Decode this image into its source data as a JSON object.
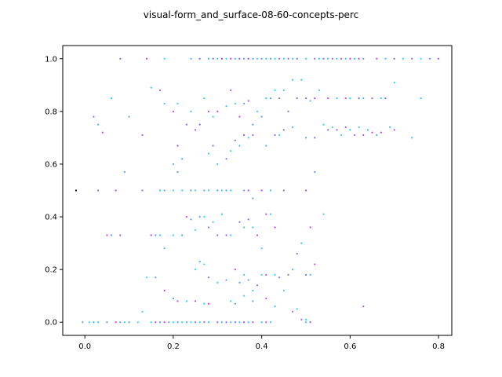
{
  "chart_data": {
    "type": "scatter",
    "title": "visual-form_and_surface-08-60-concepts-perc",
    "xlabel": "",
    "ylabel": "",
    "xlim": [
      -0.05,
      0.83
    ],
    "ylim": [
      -0.05,
      1.05
    ],
    "xticks": [
      "0.0",
      "0.2",
      "0.4",
      "0.6",
      "0.8"
    ],
    "xtick_values": [
      0.0,
      0.2,
      0.4,
      0.6,
      0.8
    ],
    "yticks": [
      "0.0",
      "0.2",
      "0.4",
      "0.6",
      "0.8",
      "1.0"
    ],
    "ytick_values": [
      0.0,
      0.2,
      0.4,
      0.6,
      0.8,
      1.0
    ],
    "grid": false,
    "colors": [
      "#b44cf0",
      "#8a6cf8",
      "#5a9cf8",
      "#38c6f4",
      "#2fd4ee"
    ],
    "series": [
      {
        "points": [
          [
            -0.02,
            0.5
          ],
          [
            -0.005,
            0.0
          ],
          [
            0.01,
            0.0
          ],
          [
            0.02,
            0.0
          ],
          [
            0.03,
            0.0
          ],
          [
            0.05,
            0.0
          ],
          [
            0.07,
            0.0
          ],
          [
            0.08,
            0.0
          ],
          [
            0.09,
            0.0
          ],
          [
            0.1,
            0.0
          ],
          [
            0.12,
            0.0
          ],
          [
            0.15,
            0.0
          ],
          [
            0.16,
            0.0
          ],
          [
            0.17,
            0.0
          ],
          [
            0.18,
            0.0
          ],
          [
            0.19,
            0.0
          ],
          [
            0.2,
            0.0
          ],
          [
            0.21,
            0.0
          ],
          [
            0.22,
            0.0
          ],
          [
            0.23,
            0.0
          ],
          [
            0.24,
            0.0
          ],
          [
            0.25,
            0.0
          ],
          [
            0.26,
            0.0
          ],
          [
            0.27,
            0.0
          ],
          [
            0.28,
            0.0
          ],
          [
            0.3,
            0.0
          ],
          [
            0.31,
            0.0
          ],
          [
            0.32,
            0.0
          ],
          [
            0.33,
            0.0
          ],
          [
            0.34,
            0.0
          ],
          [
            0.35,
            0.0
          ],
          [
            0.36,
            0.0
          ],
          [
            0.37,
            0.0
          ],
          [
            0.38,
            0.0
          ],
          [
            0.4,
            0.0
          ],
          [
            0.41,
            0.0
          ],
          [
            0.42,
            0.0
          ],
          [
            0.5,
            0.0
          ],
          [
            0.51,
            0.0
          ],
          [
            0.13,
            0.04
          ],
          [
            0.2,
            0.09
          ],
          [
            0.21,
            0.08
          ],
          [
            0.23,
            0.08
          ],
          [
            0.25,
            0.08
          ],
          [
            0.27,
            0.07
          ],
          [
            0.28,
            0.07
          ],
          [
            0.33,
            0.08
          ],
          [
            0.34,
            0.07
          ],
          [
            0.36,
            0.1
          ],
          [
            0.38,
            0.08
          ],
          [
            0.41,
            0.09
          ],
          [
            0.43,
            0.06
          ],
          [
            0.47,
            0.04
          ],
          [
            0.48,
            0.05
          ],
          [
            0.49,
            0.01
          ],
          [
            0.5,
            0.01
          ],
          [
            0.63,
            0.06
          ],
          [
            0.14,
            0.17
          ],
          [
            0.16,
            0.17
          ],
          [
            0.18,
            0.12
          ],
          [
            0.25,
            0.2
          ],
          [
            0.26,
            0.23
          ],
          [
            0.27,
            0.22
          ],
          [
            0.28,
            0.17
          ],
          [
            0.3,
            0.15
          ],
          [
            0.32,
            0.16
          ],
          [
            0.34,
            0.2
          ],
          [
            0.35,
            0.15
          ],
          [
            0.36,
            0.18
          ],
          [
            0.37,
            0.16
          ],
          [
            0.38,
            0.12
          ],
          [
            0.39,
            0.14
          ],
          [
            0.4,
            0.18
          ],
          [
            0.41,
            0.18
          ],
          [
            0.43,
            0.18
          ],
          [
            0.44,
            0.17
          ],
          [
            0.45,
            0.12
          ],
          [
            0.46,
            0.18
          ],
          [
            0.47,
            0.2
          ],
          [
            0.48,
            0.26
          ],
          [
            0.49,
            0.3
          ],
          [
            0.5,
            0.18
          ],
          [
            0.51,
            0.18
          ],
          [
            0.52,
            0.22
          ],
          [
            0.05,
            0.33
          ],
          [
            0.06,
            0.33
          ],
          [
            0.08,
            0.33
          ],
          [
            0.15,
            0.33
          ],
          [
            0.16,
            0.33
          ],
          [
            0.17,
            0.33
          ],
          [
            0.18,
            0.28
          ],
          [
            0.2,
            0.33
          ],
          [
            0.22,
            0.33
          ],
          [
            0.23,
            0.4
          ],
          [
            0.24,
            0.39
          ],
          [
            0.25,
            0.35
          ],
          [
            0.26,
            0.4
          ],
          [
            0.27,
            0.4
          ],
          [
            0.28,
            0.36
          ],
          [
            0.29,
            0.38
          ],
          [
            0.3,
            0.33
          ],
          [
            0.31,
            0.41
          ],
          [
            0.32,
            0.33
          ],
          [
            0.33,
            0.33
          ],
          [
            0.35,
            0.38
          ],
          [
            0.36,
            0.36
          ],
          [
            0.37,
            0.39
          ],
          [
            0.38,
            0.36
          ],
          [
            0.39,
            0.33
          ],
          [
            0.4,
            0.28
          ],
          [
            0.41,
            0.41
          ],
          [
            0.42,
            0.41
          ],
          [
            0.43,
            0.36
          ],
          [
            0.51,
            0.36
          ],
          [
            0.54,
            0.41
          ],
          [
            0.03,
            0.5
          ],
          [
            0.07,
            0.5
          ],
          [
            0.09,
            0.57
          ],
          [
            0.13,
            0.5
          ],
          [
            0.17,
            0.5
          ],
          [
            0.18,
            0.5
          ],
          [
            0.2,
            0.5
          ],
          [
            0.21,
            0.57
          ],
          [
            0.22,
            0.5
          ],
          [
            0.24,
            0.5
          ],
          [
            0.25,
            0.5
          ],
          [
            0.27,
            0.5
          ],
          [
            0.28,
            0.5
          ],
          [
            0.3,
            0.5
          ],
          [
            0.31,
            0.5
          ],
          [
            0.32,
            0.5
          ],
          [
            0.33,
            0.5
          ],
          [
            0.36,
            0.5
          ],
          [
            0.37,
            0.5
          ],
          [
            0.38,
            0.47
          ],
          [
            0.4,
            0.5
          ],
          [
            0.42,
            0.5
          ],
          [
            0.45,
            0.5
          ],
          [
            0.5,
            0.5
          ],
          [
            0.52,
            0.57
          ],
          [
            0.2,
            0.6
          ],
          [
            0.21,
            0.67
          ],
          [
            0.22,
            0.62
          ],
          [
            0.25,
            0.73
          ],
          [
            0.28,
            0.64
          ],
          [
            0.29,
            0.67
          ],
          [
            0.3,
            0.6
          ],
          [
            0.32,
            0.62
          ],
          [
            0.33,
            0.65
          ],
          [
            0.34,
            0.69
          ],
          [
            0.35,
            0.67
          ],
          [
            0.36,
            0.71
          ],
          [
            0.37,
            0.7
          ],
          [
            0.38,
            0.71
          ],
          [
            0.41,
            0.67
          ],
          [
            0.43,
            0.71
          ],
          [
            0.44,
            0.71
          ],
          [
            0.45,
            0.73
          ],
          [
            0.47,
            0.74
          ],
          [
            0.5,
            0.7
          ],
          [
            0.02,
            0.78
          ],
          [
            0.03,
            0.75
          ],
          [
            0.04,
            0.72
          ],
          [
            0.06,
            0.85
          ],
          [
            0.1,
            0.78
          ],
          [
            0.13,
            0.71
          ],
          [
            0.15,
            0.89
          ],
          [
            0.17,
            0.88
          ],
          [
            0.18,
            0.83
          ],
          [
            0.2,
            0.8
          ],
          [
            0.21,
            0.83
          ],
          [
            0.23,
            0.75
          ],
          [
            0.24,
            0.8
          ],
          [
            0.26,
            0.75
          ],
          [
            0.27,
            0.85
          ],
          [
            0.28,
            0.8
          ],
          [
            0.29,
            0.78
          ],
          [
            0.3,
            0.8
          ],
          [
            0.32,
            0.82
          ],
          [
            0.33,
            0.88
          ],
          [
            0.34,
            0.83
          ],
          [
            0.35,
            0.78
          ],
          [
            0.36,
            0.83
          ],
          [
            0.37,
            0.84
          ],
          [
            0.38,
            0.75
          ],
          [
            0.39,
            0.8
          ],
          [
            0.4,
            0.78
          ],
          [
            0.41,
            0.85
          ],
          [
            0.42,
            0.85
          ],
          [
            0.43,
            0.88
          ],
          [
            0.44,
            0.85
          ],
          [
            0.45,
            0.88
          ],
          [
            0.46,
            0.8
          ],
          [
            0.47,
            0.92
          ],
          [
            0.48,
            0.85
          ],
          [
            0.49,
            0.92
          ],
          [
            0.5,
            0.85
          ],
          [
            0.51,
            0.84
          ],
          [
            0.52,
            0.85
          ],
          [
            0.53,
            0.88
          ],
          [
            0.55,
            0.85
          ],
          [
            0.57,
            0.85
          ],
          [
            0.59,
            0.85
          ],
          [
            0.6,
            0.85
          ],
          [
            0.62,
            0.85
          ],
          [
            0.63,
            0.85
          ],
          [
            0.65,
            0.85
          ],
          [
            0.67,
            0.85
          ],
          [
            0.68,
            0.85
          ],
          [
            0.7,
            0.91
          ],
          [
            0.76,
            0.85
          ],
          [
            0.52,
            0.7
          ],
          [
            0.54,
            0.75
          ],
          [
            0.55,
            0.73
          ],
          [
            0.56,
            0.74
          ],
          [
            0.57,
            0.73
          ],
          [
            0.58,
            0.71
          ],
          [
            0.59,
            0.74
          ],
          [
            0.6,
            0.73
          ],
          [
            0.61,
            0.71
          ],
          [
            0.62,
            0.74
          ],
          [
            0.63,
            0.71
          ],
          [
            0.64,
            0.73
          ],
          [
            0.65,
            0.72
          ],
          [
            0.66,
            0.71
          ],
          [
            0.67,
            0.72
          ],
          [
            0.69,
            0.74
          ],
          [
            0.7,
            0.73
          ],
          [
            0.74,
            0.7
          ],
          [
            0.08,
            1.0
          ],
          [
            0.14,
            1.0
          ],
          [
            0.18,
            1.0
          ],
          [
            0.24,
            1.0
          ],
          [
            0.26,
            1.0
          ],
          [
            0.28,
            1.0
          ],
          [
            0.29,
            1.0
          ],
          [
            0.3,
            1.0
          ],
          [
            0.31,
            1.0
          ],
          [
            0.32,
            1.0
          ],
          [
            0.33,
            1.0
          ],
          [
            0.34,
            1.0
          ],
          [
            0.35,
            1.0
          ],
          [
            0.36,
            1.0
          ],
          [
            0.37,
            1.0
          ],
          [
            0.38,
            1.0
          ],
          [
            0.39,
            1.0
          ],
          [
            0.4,
            1.0
          ],
          [
            0.41,
            1.0
          ],
          [
            0.42,
            1.0
          ],
          [
            0.43,
            1.0
          ],
          [
            0.44,
            1.0
          ],
          [
            0.45,
            1.0
          ],
          [
            0.46,
            1.0
          ],
          [
            0.47,
            1.0
          ],
          [
            0.48,
            1.0
          ],
          [
            0.5,
            1.0
          ],
          [
            0.52,
            1.0
          ],
          [
            0.53,
            1.0
          ],
          [
            0.54,
            1.0
          ],
          [
            0.55,
            1.0
          ],
          [
            0.56,
            1.0
          ],
          [
            0.57,
            1.0
          ],
          [
            0.58,
            1.0
          ],
          [
            0.59,
            1.0
          ],
          [
            0.6,
            1.0
          ],
          [
            0.61,
            1.0
          ],
          [
            0.62,
            1.0
          ],
          [
            0.63,
            1.0
          ],
          [
            0.66,
            1.0
          ],
          [
            0.68,
            1.0
          ],
          [
            0.7,
            1.0
          ],
          [
            0.72,
            1.0
          ],
          [
            0.74,
            1.0
          ],
          [
            0.76,
            1.0
          ],
          [
            0.78,
            1.0
          ],
          [
            0.8,
            1.0
          ]
        ]
      }
    ]
  }
}
